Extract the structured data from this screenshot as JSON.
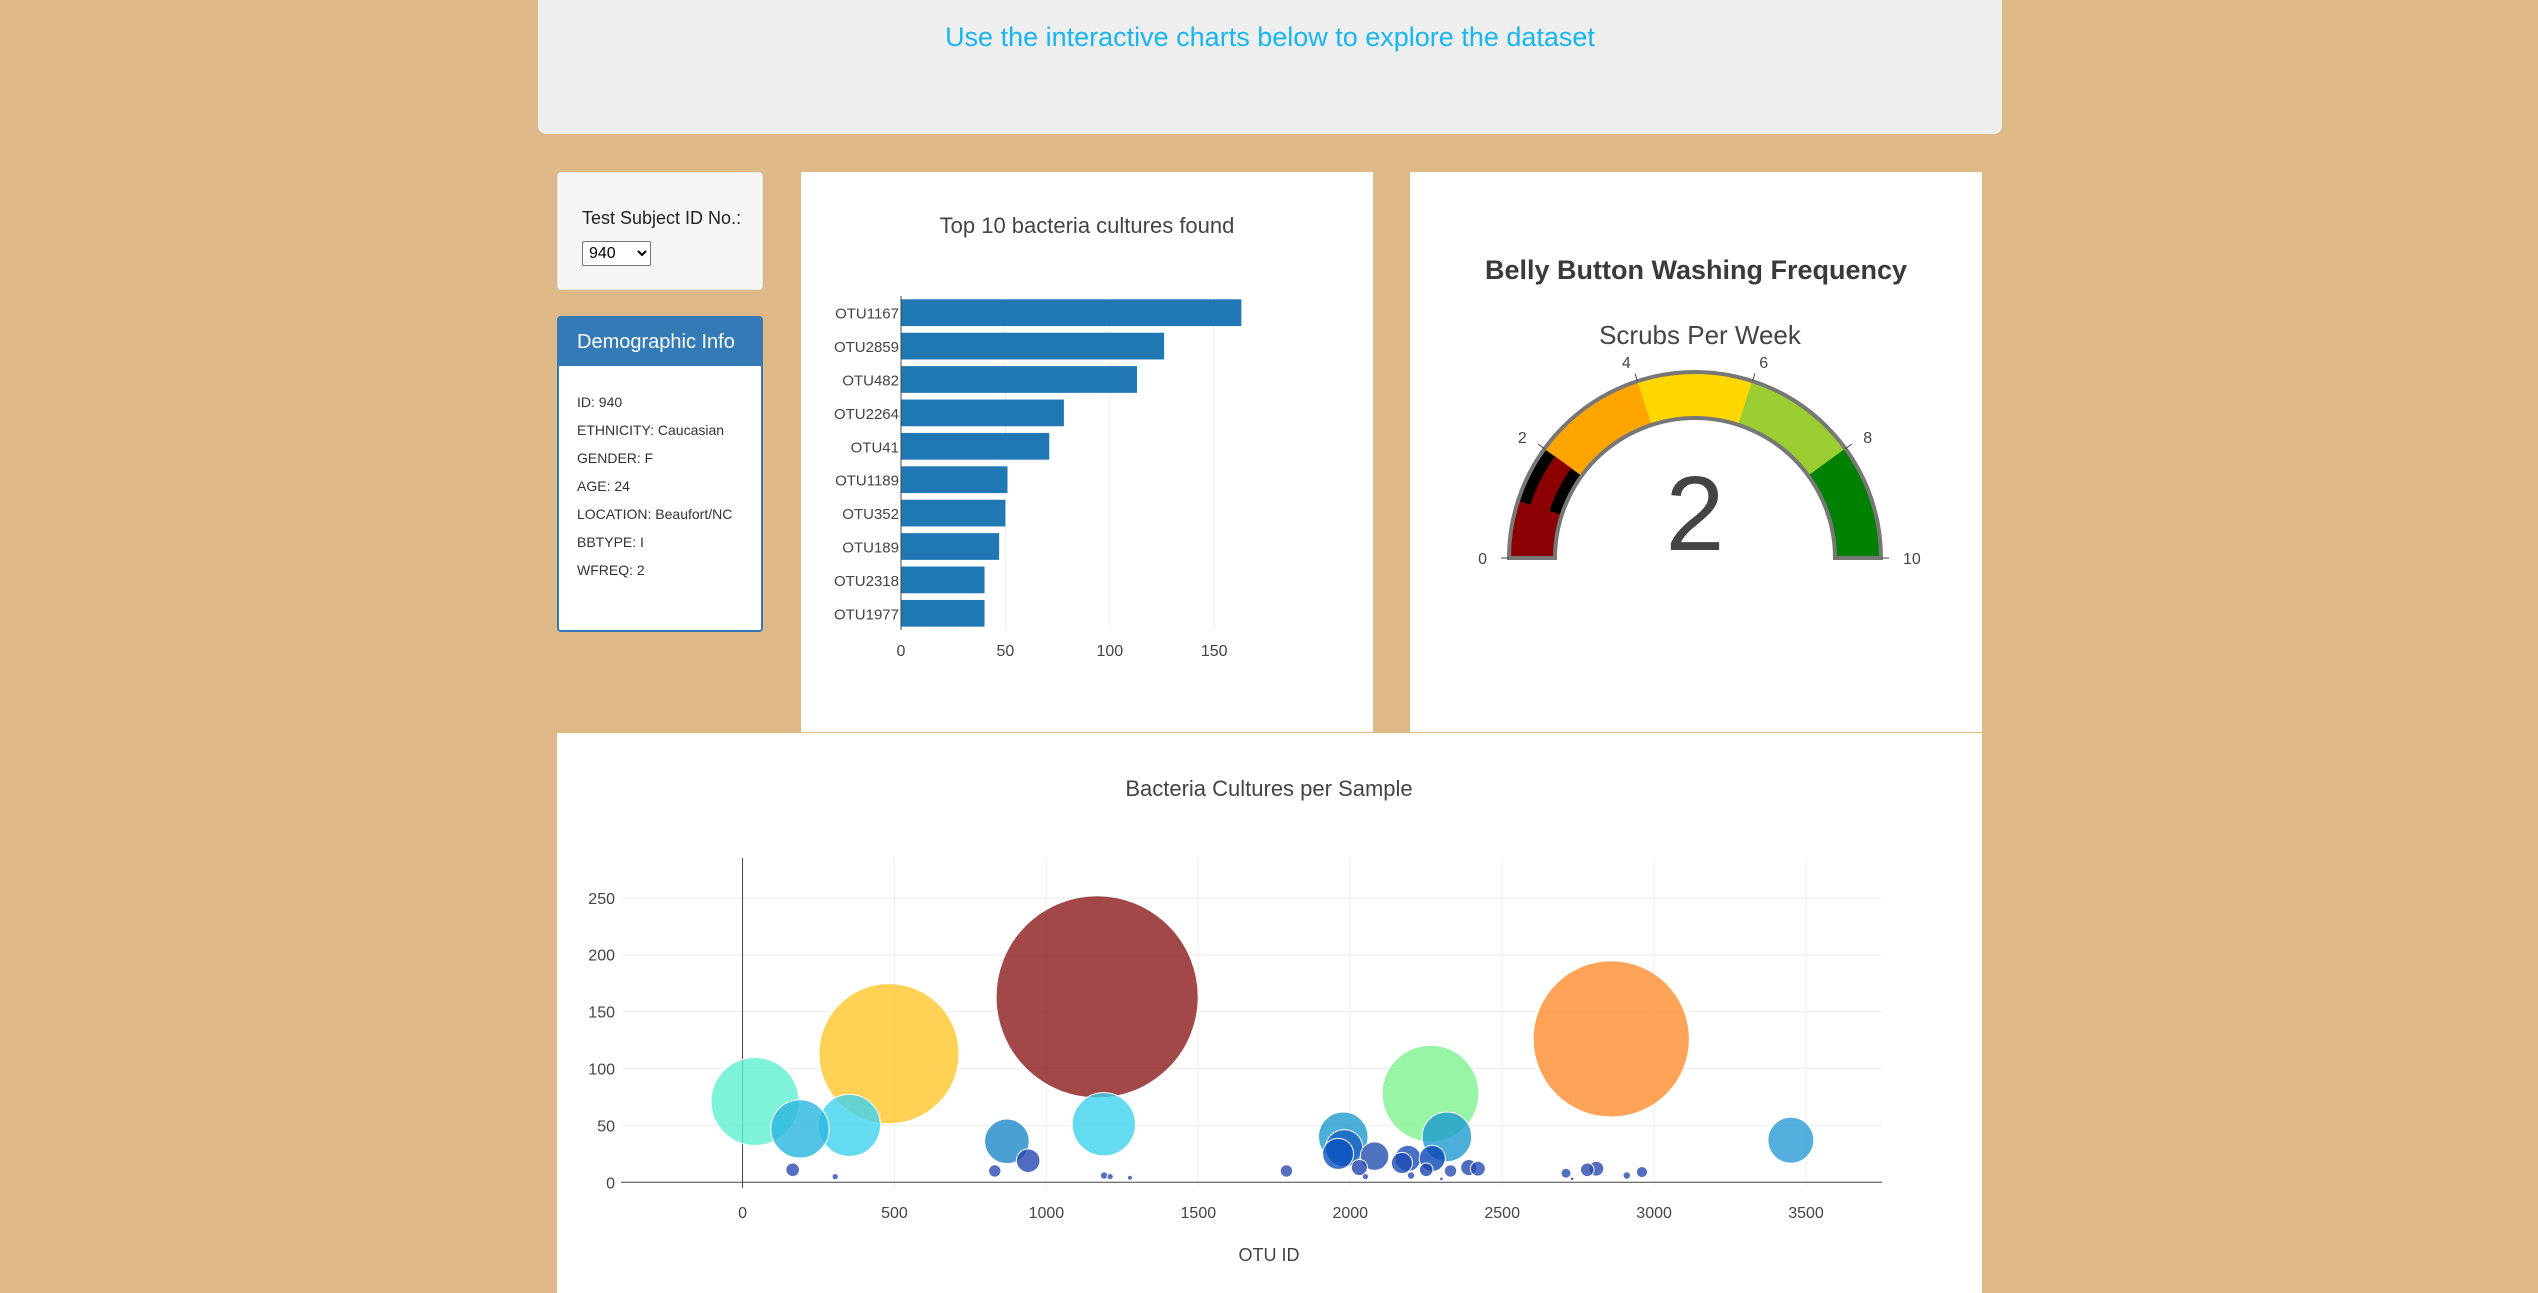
{
  "header": {
    "lead": "Use the interactive charts below to explore the dataset"
  },
  "selector": {
    "label": "Test Subject ID No.:",
    "selected": "940"
  },
  "demographics": {
    "title": "Demographic Info",
    "lines": [
      "ID: 940",
      "ETHNICITY: Caucasian",
      "GENDER: F",
      "AGE: 24",
      "LOCATION: Beaufort/NC",
      "BBTYPE: I",
      "WFREQ: 2"
    ]
  },
  "chart_data": [
    {
      "type": "bar",
      "orientation": "horizontal",
      "title": "Top 10 bacteria cultures found",
      "categories": [
        "OTU1167",
        "OTU2859",
        "OTU482",
        "OTU2264",
        "OTU41",
        "OTU1189",
        "OTU352",
        "OTU189",
        "OTU2318",
        "OTU1977"
      ],
      "values": [
        163,
        126,
        113,
        78,
        71,
        51,
        50,
        47,
        40,
        40
      ],
      "xlim": [
        0,
        170
      ],
      "xticks": [
        0,
        50,
        100,
        150
      ],
      "color": "#1f77b4",
      "grid": true
    },
    {
      "type": "gauge",
      "title": "Belly Button Washing Frequency",
      "subtitle": "Scrubs Per Week",
      "value": 2,
      "range": [
        0,
        10
      ],
      "ticks": [
        0,
        2,
        4,
        6,
        8,
        10
      ],
      "steps": [
        {
          "range": [
            0,
            1
          ],
          "color": "#8b0000"
        },
        {
          "range": [
            1,
            2
          ],
          "color": "#000000"
        },
        {
          "range": [
            2,
            4
          ],
          "color": "#ffa500"
        },
        {
          "range": [
            4,
            6
          ],
          "color": "#ffd700"
        },
        {
          "range": [
            6,
            8
          ],
          "color": "#9acd32"
        },
        {
          "range": [
            8,
            10
          ],
          "color": "#008000"
        }
      ]
    },
    {
      "type": "scatter",
      "title": "Bacteria Cultures per Sample",
      "xlabel": "OTU ID",
      "ylabel": "",
      "xlim": [
        -400,
        3750
      ],
      "ylim": [
        -5,
        285
      ],
      "xticks": [
        0,
        500,
        1000,
        1500,
        2000,
        2500,
        3000,
        3500
      ],
      "yticks": [
        0,
        50,
        100,
        150,
        200,
        250
      ],
      "grid": true,
      "points": [
        {
          "x": 1167,
          "y": 163,
          "color": "#8b1a1a"
        },
        {
          "x": 2859,
          "y": 126,
          "color": "#ff8c2e"
        },
        {
          "x": 482,
          "y": 113,
          "color": "#ffc72c"
        },
        {
          "x": 2264,
          "y": 78,
          "color": "#7ef28f"
        },
        {
          "x": 41,
          "y": 71,
          "color": "#5ef0cf"
        },
        {
          "x": 1189,
          "y": 51,
          "color": "#3dd2ee"
        },
        {
          "x": 352,
          "y": 50,
          "color": "#3dd2ee"
        },
        {
          "x": 189,
          "y": 47,
          "color": "#29b5e0"
        },
        {
          "x": 2318,
          "y": 40,
          "color": "#1e9bd0"
        },
        {
          "x": 1977,
          "y": 40,
          "color": "#1e9bd0"
        },
        {
          "x": 3450,
          "y": 37,
          "color": "#2b9bd6"
        },
        {
          "x": 870,
          "y": 36,
          "color": "#1e88c8"
        },
        {
          "x": 1980,
          "y": 30,
          "color": "#1a5fc0"
        },
        {
          "x": 1960,
          "y": 25,
          "color": "#0b52be"
        },
        {
          "x": 2190,
          "y": 21,
          "color": "#1b4fb8"
        },
        {
          "x": 2080,
          "y": 23,
          "color": "#2450b0"
        },
        {
          "x": 2270,
          "y": 21,
          "color": "#0a47b4"
        },
        {
          "x": 940,
          "y": 19,
          "color": "#2546b0"
        },
        {
          "x": 2170,
          "y": 17,
          "color": "#1c4bb3"
        },
        {
          "x": 2030,
          "y": 13,
          "color": "#2042ac"
        },
        {
          "x": 2390,
          "y": 13,
          "color": "#2447ad"
        },
        {
          "x": 2250,
          "y": 11,
          "color": "#1e45ae"
        },
        {
          "x": 165,
          "y": 11,
          "color": "#2a4ab0"
        },
        {
          "x": 830,
          "y": 10,
          "color": "#2b4bb1"
        },
        {
          "x": 2780,
          "y": 11,
          "color": "#2a4ab0"
        },
        {
          "x": 2810,
          "y": 12,
          "color": "#2a4ab0"
        },
        {
          "x": 2960,
          "y": 9,
          "color": "#2a4ab0"
        },
        {
          "x": 1790,
          "y": 10,
          "color": "#2b4bb1"
        },
        {
          "x": 2330,
          "y": 10,
          "color": "#2b4bb1"
        },
        {
          "x": 2710,
          "y": 8,
          "color": "#2b4bb1"
        },
        {
          "x": 2420,
          "y": 12,
          "color": "#2b4bb1"
        },
        {
          "x": 2910,
          "y": 6,
          "color": "#2b4bb1"
        },
        {
          "x": 305,
          "y": 5,
          "color": "#2b4bb1"
        },
        {
          "x": 1190,
          "y": 6,
          "color": "#2b4bb1"
        },
        {
          "x": 1210,
          "y": 5,
          "color": "#2b4bb1"
        },
        {
          "x": 1275,
          "y": 4,
          "color": "#2b4bb1"
        },
        {
          "x": 2050,
          "y": 5,
          "color": "#2b4bb1"
        },
        {
          "x": 2200,
          "y": 6,
          "color": "#2b4bb1"
        },
        {
          "x": 2300,
          "y": 3,
          "color": "#2b4bb1"
        },
        {
          "x": 2730,
          "y": 3,
          "color": "#2b4bb1"
        }
      ]
    }
  ]
}
